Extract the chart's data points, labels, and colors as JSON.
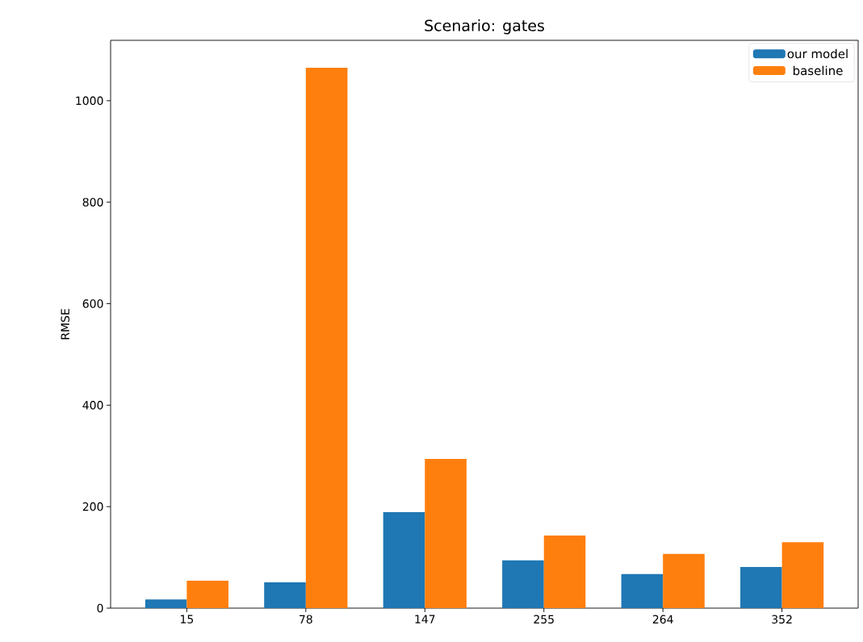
{
  "chart_data": {
    "type": "bar",
    "title": "Scenario: gates",
    "ylabel": "RMSE",
    "categories": [
      "15",
      "78",
      "147",
      "255",
      "264",
      "352"
    ],
    "series": [
      {
        "name": "our model",
        "color": "#1f77b4",
        "values": [
          17,
          51,
          189,
          94,
          67,
          81
        ]
      },
      {
        "name": "baseline",
        "color": "#ff7f0e",
        "values": [
          54,
          1065,
          294,
          143,
          107,
          130
        ]
      }
    ],
    "ylim": [
      0,
      1119
    ],
    "yticks": [
      0,
      200,
      400,
      600,
      800,
      1000
    ],
    "grid": false,
    "legend": "top right"
  }
}
